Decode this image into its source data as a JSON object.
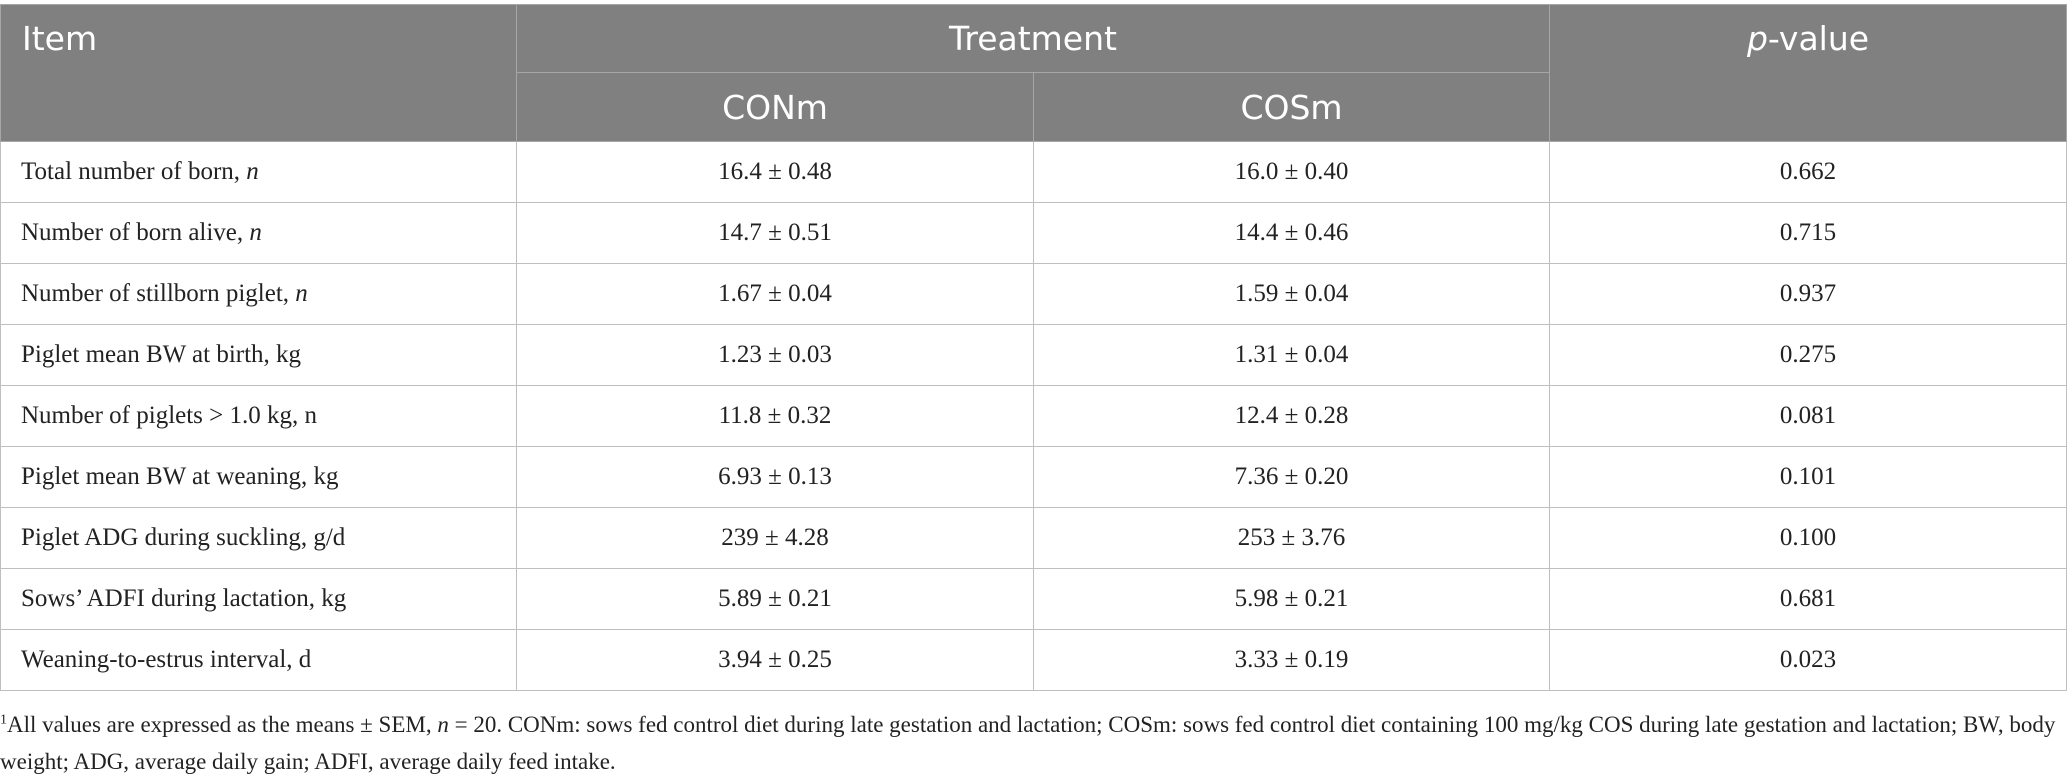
{
  "table": {
    "header": {
      "item": "Item",
      "treatment": "Treatment",
      "p_italic": "p",
      "p_rest": "-value",
      "subcolumns": [
        "CONm",
        "COSm"
      ]
    },
    "rows": [
      {
        "label": "Total number of born, ",
        "label_italic": "n",
        "conm": "16.4 ± 0.48",
        "cosm": "16.0 ± 0.40",
        "p": "0.662"
      },
      {
        "label": "Number of born alive, ",
        "label_italic": "n",
        "conm": "14.7 ± 0.51",
        "cosm": "14.4 ± 0.46",
        "p": "0.715"
      },
      {
        "label": "Number of stillborn piglet, ",
        "label_italic": "n",
        "conm": "1.67 ± 0.04",
        "cosm": "1.59 ± 0.04",
        "p": "0.937"
      },
      {
        "label": "Piglet mean BW at birth, kg",
        "label_italic": "",
        "conm": "1.23 ± 0.03",
        "cosm": "1.31 ± 0.04",
        "p": "0.275"
      },
      {
        "label": "Number of piglets > 1.0 kg, n",
        "label_italic": "",
        "conm": "11.8 ± 0.32",
        "cosm": "12.4 ± 0.28",
        "p": "0.081"
      },
      {
        "label": "Piglet mean BW at weaning, kg",
        "label_italic": "",
        "conm": "6.93 ± 0.13",
        "cosm": "7.36 ± 0.20",
        "p": "0.101"
      },
      {
        "label": "Piglet ADG during suckling, g/d",
        "label_italic": "",
        "conm": "239 ± 4.28",
        "cosm": "253 ± 3.76",
        "p": "0.100"
      },
      {
        "label": "Sows’ ADFI during lactation, kg",
        "label_italic": "",
        "conm": "5.89 ± 0.21",
        "cosm": "5.98 ± 0.21",
        "p": "0.681"
      },
      {
        "label": "Weaning-to-estrus interval, d",
        "label_italic": "",
        "conm": "3.94 ± 0.25",
        "cosm": "3.33 ± 0.19",
        "p": "0.023"
      }
    ]
  },
  "footnote": {
    "marker": "1",
    "text_a": "All values are expressed as the means ± SEM, ",
    "n_italic": "n",
    "text_b": " = 20. CONm: sows fed control diet during late gestation and lactation; COSm: sows fed control diet containing 100 mg/kg COS during late gestation and lactation; BW, body weight; ADG, average daily gain; ADFI, average daily feed intake."
  }
}
